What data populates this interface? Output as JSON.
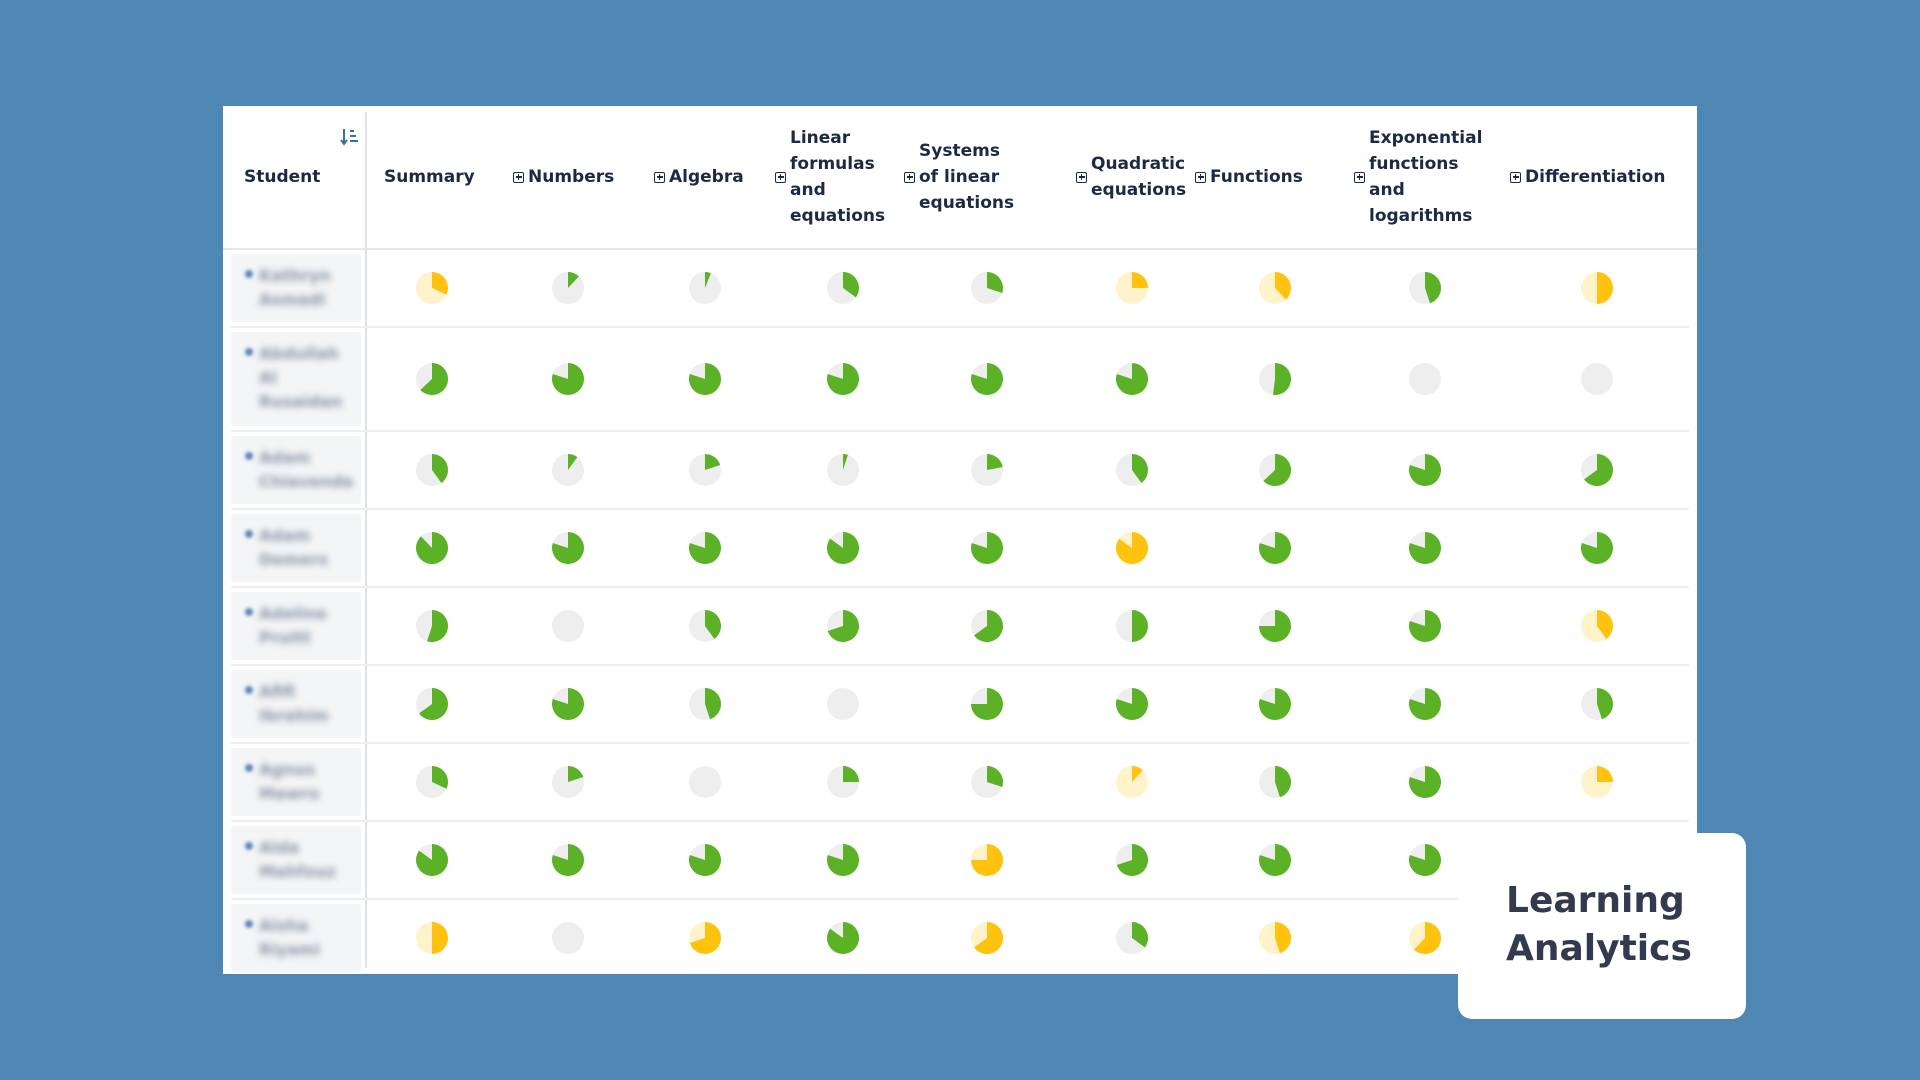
{
  "header": {
    "student_label": "Student",
    "summary_label": "Summary",
    "columns": [
      {
        "label": "Numbers",
        "lines": [
          "Numbers"
        ]
      },
      {
        "label": "Algebra",
        "lines": [
          "Algebra"
        ]
      },
      {
        "label": "Linear formulas and equations",
        "lines": [
          "Linear",
          "formulas",
          "and",
          "equations"
        ]
      },
      {
        "label": "Systems of linear equations",
        "lines": [
          "Systems",
          "of linear",
          "equations"
        ]
      },
      {
        "label": "Quadratic equations",
        "lines": [
          "Quadratic",
          "equations"
        ]
      },
      {
        "label": "Functions",
        "lines": [
          "Functions"
        ]
      },
      {
        "label": "Exponential functions and logarithms",
        "lines": [
          "Exponential",
          "functions",
          "and",
          "logarithms"
        ]
      },
      {
        "label": "Differentiation",
        "lines": [
          "Differentiation"
        ]
      }
    ]
  },
  "colors": {
    "green": "#5cb227",
    "yellow": "#ffc20e",
    "grey_track": "#eeeeee",
    "yellow_track": "#fff3cc",
    "background": "#4f87b4"
  },
  "icons": {
    "sort": "sort-descending-icon",
    "expand": "plus-square-icon"
  },
  "rows": [
    {
      "name": "Kathryn Asmadi",
      "cells": [
        {
          "f": 0.32,
          "c": "yellow"
        },
        {
          "f": 0.12,
          "c": "green"
        },
        {
          "f": 0.06,
          "c": "green"
        },
        {
          "f": 0.35,
          "c": "green"
        },
        {
          "f": 0.3,
          "c": "green"
        },
        {
          "f": 0.25,
          "c": "yellow"
        },
        {
          "f": 0.38,
          "c": "yellow"
        },
        {
          "f": 0.45,
          "c": "green"
        },
        {
          "f": 0.5,
          "c": "yellow"
        }
      ]
    },
    {
      "name": "Abdullah Al Rusaidan",
      "cells": [
        {
          "f": 0.63,
          "c": "green"
        },
        {
          "f": 0.8,
          "c": "green"
        },
        {
          "f": 0.8,
          "c": "green"
        },
        {
          "f": 0.8,
          "c": "green"
        },
        {
          "f": 0.8,
          "c": "green"
        },
        {
          "f": 0.8,
          "c": "green"
        },
        {
          "f": 0.52,
          "c": "green"
        },
        {
          "f": 0.0,
          "c": "green"
        },
        {
          "f": 0.0,
          "c": "green"
        }
      ]
    },
    {
      "name": "Adam Chiavenda",
      "cells": [
        {
          "f": 0.4,
          "c": "green"
        },
        {
          "f": 0.1,
          "c": "green"
        },
        {
          "f": 0.2,
          "c": "green"
        },
        {
          "f": 0.05,
          "c": "green"
        },
        {
          "f": 0.22,
          "c": "green"
        },
        {
          "f": 0.4,
          "c": "green"
        },
        {
          "f": 0.63,
          "c": "green"
        },
        {
          "f": 0.8,
          "c": "green"
        },
        {
          "f": 0.65,
          "c": "green"
        }
      ]
    },
    {
      "name": "Adam Demers",
      "cells": [
        {
          "f": 0.88,
          "c": "green"
        },
        {
          "f": 0.8,
          "c": "green"
        },
        {
          "f": 0.8,
          "c": "green"
        },
        {
          "f": 0.85,
          "c": "green"
        },
        {
          "f": 0.8,
          "c": "green"
        },
        {
          "f": 0.85,
          "c": "yellow"
        },
        {
          "f": 0.8,
          "c": "green"
        },
        {
          "f": 0.8,
          "c": "green"
        },
        {
          "f": 0.8,
          "c": "green"
        }
      ]
    },
    {
      "name": "Adeline Pruitt",
      "cells": [
        {
          "f": 0.55,
          "c": "green"
        },
        {
          "f": 0.0,
          "c": "green"
        },
        {
          "f": 0.4,
          "c": "green"
        },
        {
          "f": 0.7,
          "c": "green"
        },
        {
          "f": 0.65,
          "c": "green"
        },
        {
          "f": 0.5,
          "c": "green"
        },
        {
          "f": 0.75,
          "c": "green"
        },
        {
          "f": 0.8,
          "c": "green"
        },
        {
          "f": 0.4,
          "c": "yellow"
        }
      ]
    },
    {
      "name": "Afifi Ibrahim",
      "cells": [
        {
          "f": 0.65,
          "c": "green"
        },
        {
          "f": 0.8,
          "c": "green"
        },
        {
          "f": 0.45,
          "c": "green"
        },
        {
          "f": 0.0,
          "c": "green"
        },
        {
          "f": 0.75,
          "c": "green"
        },
        {
          "f": 0.8,
          "c": "green"
        },
        {
          "f": 0.8,
          "c": "green"
        },
        {
          "f": 0.8,
          "c": "green"
        },
        {
          "f": 0.45,
          "c": "green"
        }
      ]
    },
    {
      "name": "Agnus Mawro",
      "cells": [
        {
          "f": 0.32,
          "c": "green"
        },
        {
          "f": 0.2,
          "c": "green"
        },
        {
          "f": 0.0,
          "c": "green"
        },
        {
          "f": 0.25,
          "c": "green"
        },
        {
          "f": 0.3,
          "c": "green"
        },
        {
          "f": 0.12,
          "c": "yellow"
        },
        {
          "f": 0.45,
          "c": "green"
        },
        {
          "f": 0.8,
          "c": "green"
        },
        {
          "f": 0.25,
          "c": "yellow"
        }
      ]
    },
    {
      "name": "Aida Mahfouz",
      "cells": [
        {
          "f": 0.85,
          "c": "green"
        },
        {
          "f": 0.8,
          "c": "green"
        },
        {
          "f": 0.8,
          "c": "green"
        },
        {
          "f": 0.8,
          "c": "green"
        },
        {
          "f": 0.75,
          "c": "yellow"
        },
        {
          "f": 0.7,
          "c": "green"
        },
        {
          "f": 0.8,
          "c": "green"
        },
        {
          "f": 0.8,
          "c": "green"
        },
        null
      ]
    },
    {
      "name": "Aisha Riyami",
      "cells": [
        {
          "f": 0.5,
          "c": "yellow"
        },
        {
          "f": 0.0,
          "c": "green"
        },
        {
          "f": 0.7,
          "c": "yellow"
        },
        {
          "f": 0.85,
          "c": "green"
        },
        {
          "f": 0.65,
          "c": "yellow"
        },
        {
          "f": 0.35,
          "c": "green"
        },
        {
          "f": 0.45,
          "c": "yellow"
        },
        {
          "f": 0.62,
          "c": "yellow"
        },
        null
      ]
    }
  ],
  "badge": {
    "line1": "Learning",
    "line2": "Analytics"
  }
}
